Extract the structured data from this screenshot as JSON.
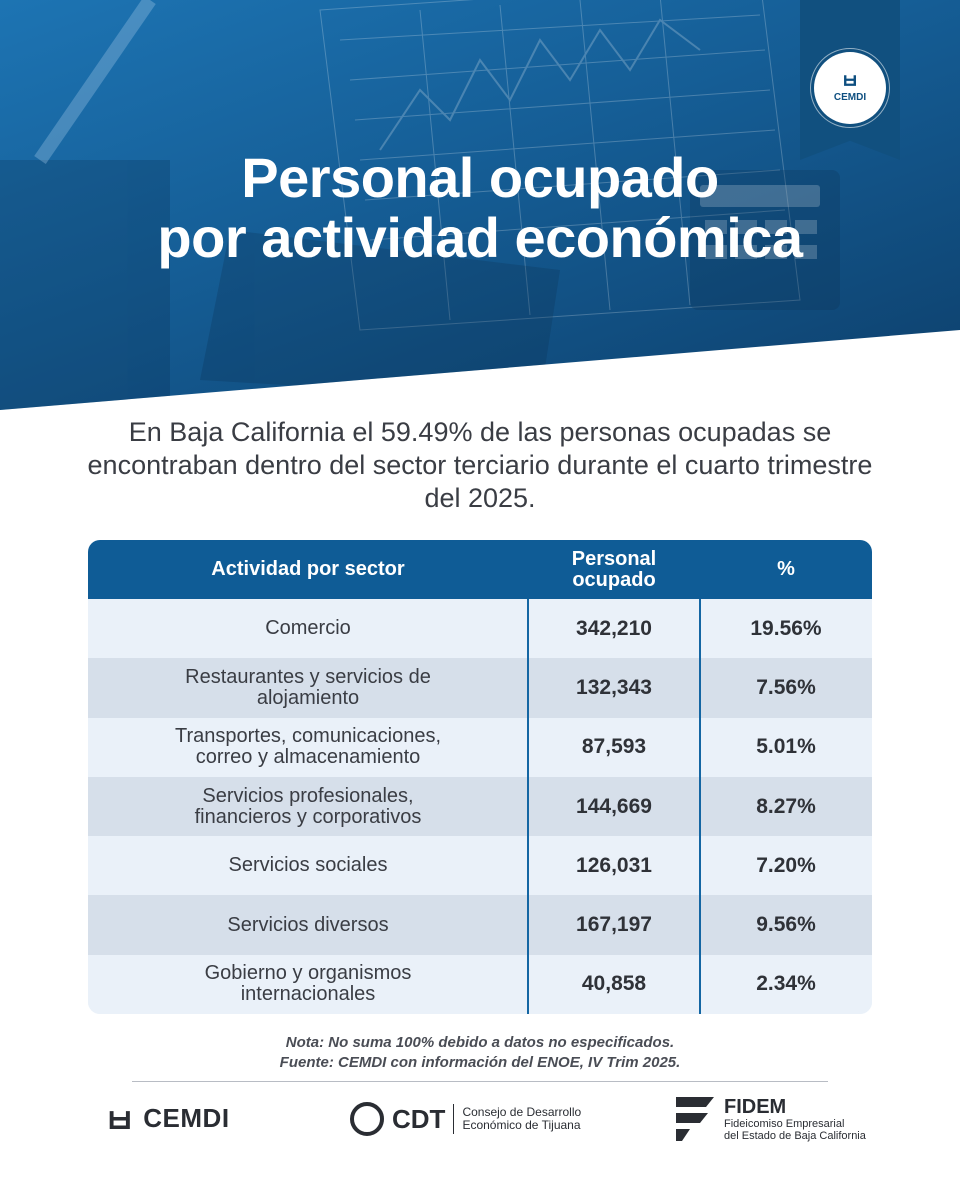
{
  "hero": {
    "title_line1": "Personal ocupado",
    "title_line2": "por actividad económica",
    "seal": {
      "mark": "ㅂ",
      "word": "CEMDI"
    }
  },
  "intro": "En Baja California el 59.49% de las personas ocupadas se encontraban dentro del sector terciario durante el cuarto trimestre del 2025.",
  "table": {
    "headers": [
      "Actividad por sector",
      "Personal ocupado",
      "%"
    ],
    "rows": [
      {
        "sector": "Comercio",
        "personal": "342,210",
        "pct": "19.56%"
      },
      {
        "sector": "Restaurantes y servicios de alojamiento",
        "personal": "132,343",
        "pct": "7.56%"
      },
      {
        "sector": "Transportes, comunicaciones, correo y almacenamiento",
        "personal": "87,593",
        "pct": "5.01%"
      },
      {
        "sector": "Servicios profesionales, financieros y corporativos",
        "personal": "144,669",
        "pct": "8.27%"
      },
      {
        "sector": "Servicios sociales",
        "personal": "126,031",
        "pct": "7.20%"
      },
      {
        "sector": "Servicios diversos",
        "personal": "167,197",
        "pct": "9.56%"
      },
      {
        "sector": "Gobierno y organismos internacionales",
        "personal": "40,858",
        "pct": "2.34%"
      }
    ]
  },
  "notes": {
    "note": "Nota: No suma 100% debido a datos no especificados.",
    "source": "Fuente: CEMDI con información del ENOE, IV Trim 2025."
  },
  "footer": {
    "cemdi": {
      "mark": "ㅂ",
      "name": "CEMDI"
    },
    "cdt": {
      "name": "CDT",
      "sub1": "Consejo de Desarrollo",
      "sub2": "Económico de Tijuana"
    },
    "fidem": {
      "name": "FIDEM",
      "sub1": "Fideicomiso Empresarial",
      "sub2": "del Estado de Baja California"
    }
  },
  "colors": {
    "primary": "#0f5c96",
    "hero_light": "#1d74b3",
    "row_alt": "#d6dfea",
    "row_base": "#eaf1f9",
    "text": "#3a3d44"
  }
}
